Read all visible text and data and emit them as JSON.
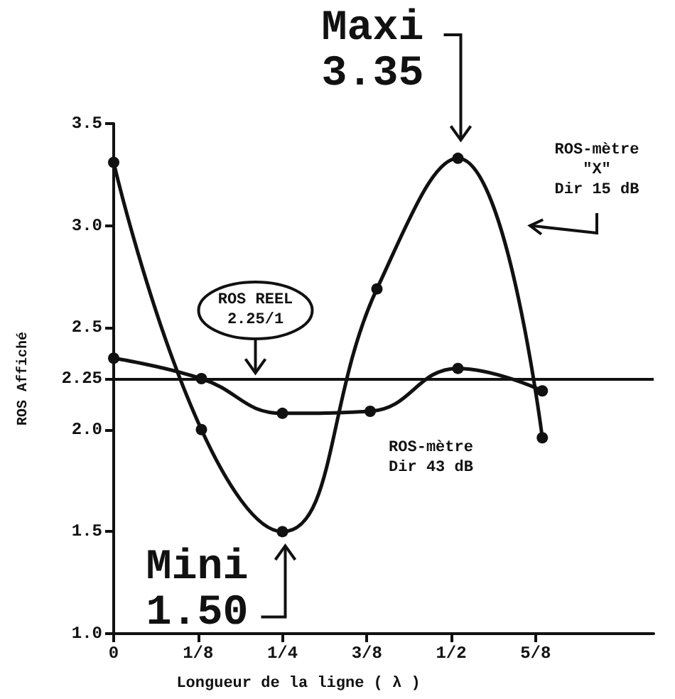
{
  "chart_data": {
    "type": "line",
    "xlabel": "Longueur de la ligne ( λ )",
    "ylabel": "ROS Affiché",
    "xlim": [
      0,
      0.8
    ],
    "xticks": [
      0,
      {
        "value": 0.125,
        "label": "1/8"
      },
      {
        "value": 0.25,
        "label": "1/4"
      },
      {
        "value": 0.375,
        "label": "3/8"
      },
      {
        "value": 0.5,
        "label": "1/2"
      },
      {
        "value": 0.625,
        "label": "5/8"
      }
    ],
    "ylim": [
      1,
      3.5
    ],
    "yticks": [
      {
        "value": 1,
        "label": "1.0"
      },
      1.5,
      {
        "value": 2,
        "label": "2.0"
      },
      2.25,
      2.5,
      {
        "value": 3,
        "label": "3.0"
      },
      3.5
    ],
    "series": [
      {
        "name": "ROS-mètre \"X\" Dir 15 dB",
        "color": "#111111",
        "x": [
          0,
          0.13,
          0.25,
          0.39,
          0.51,
          0.635
        ],
        "values": [
          3.31,
          2.0,
          1.5,
          2.69,
          3.33,
          1.96
        ]
      },
      {
        "name": "ROS-mètre Dir 43 dB",
        "color": "#111111",
        "x": [
          0,
          0.13,
          0.25,
          0.38,
          0.51,
          0.635
        ],
        "values": [
          2.35,
          2.25,
          2.08,
          2.09,
          2.3,
          2.19
        ]
      }
    ],
    "ref_lines": [
      {
        "axis": "y",
        "value": 2.25,
        "label": "ROS REEL 2.25/1",
        "color": "#111111"
      }
    ],
    "annotations": [
      {
        "text": "Maxi 3.35",
        "x": 0.51,
        "y": 3.35
      },
      {
        "text": "Mini 1.50",
        "x": 0.25,
        "y": 1.5
      }
    ],
    "marker": "circle",
    "line_style": "solid",
    "grid": false
  }
}
